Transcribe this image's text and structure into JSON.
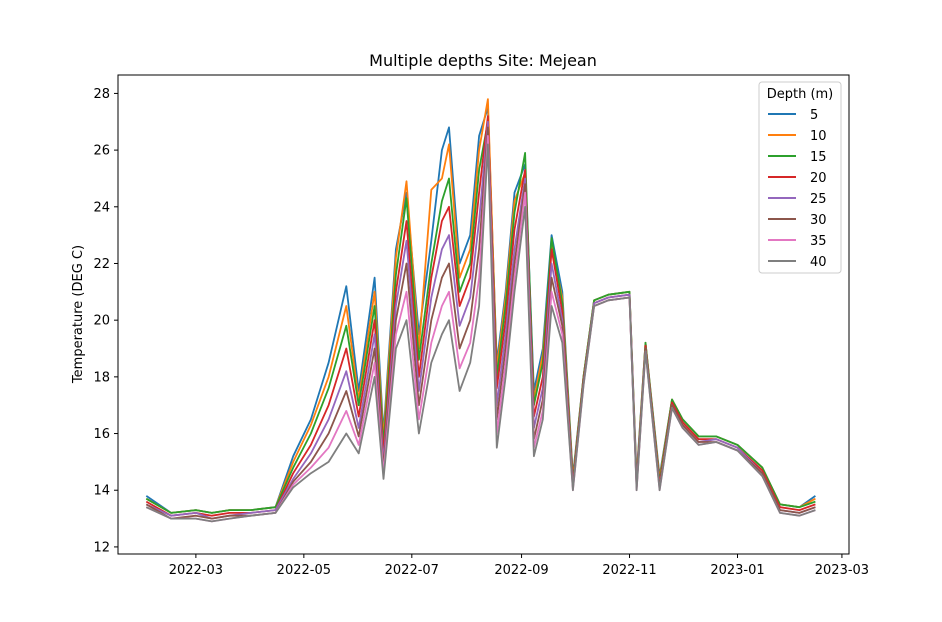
{
  "chart_data": {
    "type": "line",
    "title": "Multiple depths Site: Mejean",
    "xlabel": "",
    "ylabel": "Temperature (DEG C)",
    "x_ticks": [
      "2022-03",
      "2022-05",
      "2022-07",
      "2022-09",
      "2022-11",
      "2023-01",
      "2023-03"
    ],
    "x_tick_dates": [
      "2022-03-01",
      "2022-05-01",
      "2022-07-01",
      "2022-09-01",
      "2022-11-01",
      "2023-01-01",
      "2023-03-01"
    ],
    "y_ticks": [
      "12",
      "14",
      "16",
      "18",
      "20",
      "22",
      "24",
      "26",
      "28"
    ],
    "xlim": [
      "2022-01-16",
      "2023-03-05"
    ],
    "ylim": [
      11.75,
      28.65
    ],
    "grid": false,
    "legend": {
      "title": "Depth (m)",
      "placement": "top-right",
      "entries": [
        "5",
        "10",
        "15",
        "20",
        "25",
        "30",
        "35",
        "40"
      ]
    },
    "series": [
      {
        "name": "5",
        "color": "#1f77b4",
        "x": [
          "2022-02-01",
          "2022-02-15",
          "2022-03-01",
          "2022-03-10",
          "2022-03-20",
          "2022-04-01",
          "2022-04-15",
          "2022-04-25",
          "2022-05-05",
          "2022-05-15",
          "2022-05-25",
          "2022-06-01",
          "2022-06-10",
          "2022-06-15",
          "2022-06-22",
          "2022-06-28",
          "2022-07-05",
          "2022-07-12",
          "2022-07-18",
          "2022-07-22",
          "2022-07-28",
          "2022-08-03",
          "2022-08-08",
          "2022-08-13",
          "2022-08-18",
          "2022-08-23",
          "2022-08-28",
          "2022-09-03",
          "2022-09-08",
          "2022-09-13",
          "2022-09-18",
          "2022-09-24",
          "2022-09-30",
          "2022-10-06",
          "2022-10-12",
          "2022-10-20",
          "2022-11-01",
          "2022-11-05",
          "2022-11-10",
          "2022-11-18",
          "2022-11-25",
          "2022-12-01",
          "2022-12-10",
          "2022-12-20",
          "2023-01-01",
          "2023-01-15",
          "2023-01-25",
          "2023-02-05",
          "2023-02-14"
        ],
        "y": [
          13.8,
          13.2,
          13.3,
          13.2,
          13.3,
          13.3,
          13.4,
          15.2,
          16.5,
          18.5,
          21.2,
          17.5,
          21.5,
          16.0,
          22.5,
          24.5,
          19.5,
          22.8,
          26.0,
          26.8,
          22.0,
          23.0,
          26.5,
          27.5,
          18.5,
          21.0,
          24.5,
          25.5,
          17.5,
          19.0,
          23.0,
          21.0,
          14.5,
          18.0,
          20.7,
          20.9,
          21.0,
          14.5,
          19.2,
          14.5,
          17.2,
          16.5,
          15.9,
          15.9,
          15.6,
          14.8,
          13.5,
          13.4,
          13.8
        ]
      },
      {
        "name": "10",
        "color": "#ff7f0e",
        "x": [
          "2022-02-01",
          "2022-02-15",
          "2022-03-01",
          "2022-03-10",
          "2022-03-20",
          "2022-04-01",
          "2022-04-15",
          "2022-04-25",
          "2022-05-05",
          "2022-05-15",
          "2022-05-25",
          "2022-06-01",
          "2022-06-10",
          "2022-06-15",
          "2022-06-22",
          "2022-06-28",
          "2022-07-05",
          "2022-07-12",
          "2022-07-18",
          "2022-07-22",
          "2022-07-28",
          "2022-08-03",
          "2022-08-08",
          "2022-08-13",
          "2022-08-18",
          "2022-08-23",
          "2022-08-28",
          "2022-09-03",
          "2022-09-08",
          "2022-09-13",
          "2022-09-18",
          "2022-09-24",
          "2022-09-30",
          "2022-10-06",
          "2022-10-12",
          "2022-10-20",
          "2022-11-01",
          "2022-11-05",
          "2022-11-10",
          "2022-11-18",
          "2022-11-25",
          "2022-12-01",
          "2022-12-10",
          "2022-12-20",
          "2023-01-01",
          "2023-01-15",
          "2023-01-25",
          "2023-02-05",
          "2023-02-14"
        ],
        "y": [
          13.7,
          13.2,
          13.3,
          13.2,
          13.3,
          13.3,
          13.4,
          15.0,
          16.3,
          18.0,
          20.5,
          17.2,
          21.0,
          15.8,
          22.2,
          24.9,
          19.0,
          24.6,
          25.0,
          26.2,
          21.5,
          22.5,
          26.0,
          27.8,
          18.3,
          20.8,
          24.2,
          25.2,
          17.2,
          18.8,
          22.6,
          20.8,
          14.4,
          18.0,
          20.7,
          20.9,
          21.0,
          14.4,
          19.2,
          14.4,
          17.2,
          16.5,
          15.9,
          15.9,
          15.6,
          14.8,
          13.5,
          13.4,
          13.7
        ]
      },
      {
        "name": "15",
        "color": "#2ca02c",
        "x": [
          "2022-02-01",
          "2022-02-15",
          "2022-03-01",
          "2022-03-10",
          "2022-03-20",
          "2022-04-01",
          "2022-04-15",
          "2022-04-25",
          "2022-05-05",
          "2022-05-15",
          "2022-05-25",
          "2022-06-01",
          "2022-06-10",
          "2022-06-15",
          "2022-06-22",
          "2022-06-28",
          "2022-07-05",
          "2022-07-12",
          "2022-07-18",
          "2022-07-22",
          "2022-07-28",
          "2022-08-03",
          "2022-08-08",
          "2022-08-13",
          "2022-08-18",
          "2022-08-23",
          "2022-08-28",
          "2022-09-03",
          "2022-09-08",
          "2022-09-13",
          "2022-09-18",
          "2022-09-24",
          "2022-09-30",
          "2022-10-06",
          "2022-10-12",
          "2022-10-20",
          "2022-11-01",
          "2022-11-05",
          "2022-11-10",
          "2022-11-18",
          "2022-11-25",
          "2022-12-01",
          "2022-12-10",
          "2022-12-20",
          "2023-01-01",
          "2023-01-15",
          "2023-01-25",
          "2023-02-05",
          "2023-02-14"
        ],
        "y": [
          13.7,
          13.2,
          13.3,
          13.2,
          13.3,
          13.3,
          13.4,
          14.8,
          16.0,
          17.6,
          19.8,
          17.0,
          20.5,
          15.6,
          21.6,
          24.3,
          18.6,
          22.0,
          24.2,
          25.0,
          21.0,
          22.0,
          25.3,
          27.0,
          18.0,
          20.5,
          23.8,
          25.9,
          17.0,
          18.5,
          22.9,
          20.6,
          14.3,
          18.0,
          20.7,
          20.9,
          21.0,
          14.3,
          19.2,
          14.3,
          17.2,
          16.5,
          15.9,
          15.9,
          15.6,
          14.8,
          13.5,
          13.4,
          13.6
        ]
      },
      {
        "name": "20",
        "color": "#d62728",
        "x": [
          "2022-02-01",
          "2022-02-15",
          "2022-03-01",
          "2022-03-10",
          "2022-03-20",
          "2022-04-01",
          "2022-04-15",
          "2022-04-25",
          "2022-05-05",
          "2022-05-15",
          "2022-05-25",
          "2022-06-01",
          "2022-06-10",
          "2022-06-15",
          "2022-06-22",
          "2022-06-28",
          "2022-07-05",
          "2022-07-12",
          "2022-07-18",
          "2022-07-22",
          "2022-07-28",
          "2022-08-03",
          "2022-08-08",
          "2022-08-13",
          "2022-08-18",
          "2022-08-23",
          "2022-08-28",
          "2022-09-03",
          "2022-09-08",
          "2022-09-13",
          "2022-09-18",
          "2022-09-24",
          "2022-09-30",
          "2022-10-06",
          "2022-10-12",
          "2022-10-20",
          "2022-11-01",
          "2022-11-05",
          "2022-11-10",
          "2022-11-18",
          "2022-11-25",
          "2022-12-01",
          "2022-12-10",
          "2022-12-20",
          "2023-01-01",
          "2023-01-15",
          "2023-01-25",
          "2023-02-05",
          "2023-02-14"
        ],
        "y": [
          13.6,
          13.1,
          13.2,
          13.1,
          13.2,
          13.2,
          13.3,
          14.6,
          15.6,
          17.0,
          19.0,
          16.6,
          20.0,
          15.3,
          21.0,
          23.5,
          18.0,
          21.5,
          23.5,
          24.0,
          20.5,
          21.5,
          24.5,
          27.2,
          17.6,
          20.0,
          23.2,
          25.3,
          16.6,
          18.0,
          22.5,
          20.3,
          14.2,
          17.9,
          20.6,
          20.8,
          20.9,
          14.2,
          19.1,
          14.2,
          17.1,
          16.4,
          15.8,
          15.8,
          15.5,
          14.7,
          13.4,
          13.3,
          13.5
        ]
      },
      {
        "name": "25",
        "color": "#9467bd",
        "x": [
          "2022-02-01",
          "2022-02-15",
          "2022-03-01",
          "2022-03-10",
          "2022-03-20",
          "2022-04-01",
          "2022-04-15",
          "2022-04-25",
          "2022-05-05",
          "2022-05-15",
          "2022-05-25",
          "2022-06-01",
          "2022-06-10",
          "2022-06-15",
          "2022-06-22",
          "2022-06-28",
          "2022-07-05",
          "2022-07-12",
          "2022-07-18",
          "2022-07-22",
          "2022-07-28",
          "2022-08-03",
          "2022-08-08",
          "2022-08-13",
          "2022-08-18",
          "2022-08-23",
          "2022-08-28",
          "2022-09-03",
          "2022-09-08",
          "2022-09-13",
          "2022-09-18",
          "2022-09-24",
          "2022-09-30",
          "2022-10-06",
          "2022-10-12",
          "2022-10-20",
          "2022-11-01",
          "2022-11-05",
          "2022-11-10",
          "2022-11-18",
          "2022-11-25",
          "2022-12-01",
          "2022-12-10",
          "2022-12-20",
          "2023-01-01",
          "2023-01-15",
          "2023-01-25",
          "2023-02-05",
          "2023-02-14"
        ],
        "y": [
          13.5,
          13.1,
          13.2,
          13.0,
          13.1,
          13.2,
          13.3,
          14.4,
          15.3,
          16.5,
          18.2,
          16.2,
          19.5,
          15.0,
          20.5,
          22.8,
          17.5,
          20.8,
          22.5,
          23.0,
          19.8,
          20.8,
          23.5,
          27.0,
          17.0,
          19.5,
          22.5,
          25.0,
          16.2,
          17.6,
          22.0,
          20.0,
          14.1,
          17.8,
          20.6,
          20.8,
          20.9,
          14.1,
          19.0,
          14.1,
          17.0,
          16.3,
          15.7,
          15.8,
          15.5,
          14.6,
          13.3,
          13.2,
          13.4
        ]
      },
      {
        "name": "30",
        "color": "#8c564b",
        "x": [
          "2022-02-01",
          "2022-02-15",
          "2022-03-01",
          "2022-03-10",
          "2022-03-20",
          "2022-04-01",
          "2022-04-15",
          "2022-04-25",
          "2022-05-05",
          "2022-05-15",
          "2022-05-25",
          "2022-06-01",
          "2022-06-10",
          "2022-06-15",
          "2022-06-22",
          "2022-06-28",
          "2022-07-05",
          "2022-07-12",
          "2022-07-18",
          "2022-07-22",
          "2022-07-28",
          "2022-08-03",
          "2022-08-08",
          "2022-08-13",
          "2022-08-18",
          "2022-08-23",
          "2022-08-28",
          "2022-09-03",
          "2022-09-08",
          "2022-09-13",
          "2022-09-18",
          "2022-09-24",
          "2022-09-30",
          "2022-10-06",
          "2022-10-12",
          "2022-10-20",
          "2022-11-01",
          "2022-11-05",
          "2022-11-10",
          "2022-11-18",
          "2022-11-25",
          "2022-12-01",
          "2022-12-10",
          "2022-12-20",
          "2023-01-01",
          "2023-01-15",
          "2023-01-25",
          "2023-02-05",
          "2023-02-14"
        ],
        "y": [
          13.5,
          13.0,
          13.1,
          13.0,
          13.1,
          13.1,
          13.2,
          14.3,
          15.0,
          16.0,
          17.5,
          15.9,
          19.0,
          14.8,
          20.0,
          22.0,
          17.0,
          20.0,
          21.5,
          22.0,
          19.0,
          20.0,
          22.5,
          26.8,
          16.5,
          19.0,
          22.0,
          24.8,
          15.8,
          17.2,
          21.5,
          19.8,
          14.1,
          17.8,
          20.5,
          20.7,
          20.8,
          14.1,
          19.0,
          14.1,
          17.0,
          16.3,
          15.7,
          15.7,
          15.4,
          14.6,
          13.3,
          13.2,
          13.4
        ]
      },
      {
        "name": "35",
        "color": "#e377c2",
        "x": [
          "2022-02-01",
          "2022-02-15",
          "2022-03-01",
          "2022-03-10",
          "2022-03-20",
          "2022-04-01",
          "2022-04-15",
          "2022-04-25",
          "2022-05-05",
          "2022-05-15",
          "2022-05-25",
          "2022-06-01",
          "2022-06-10",
          "2022-06-15",
          "2022-06-22",
          "2022-06-28",
          "2022-07-05",
          "2022-07-12",
          "2022-07-18",
          "2022-07-22",
          "2022-07-28",
          "2022-08-03",
          "2022-08-08",
          "2022-08-13",
          "2022-08-18",
          "2022-08-23",
          "2022-08-28",
          "2022-09-03",
          "2022-09-08",
          "2022-09-13",
          "2022-09-18",
          "2022-09-24",
          "2022-09-30",
          "2022-10-06",
          "2022-10-12",
          "2022-10-20",
          "2022-11-01",
          "2022-11-05",
          "2022-11-10",
          "2022-11-18",
          "2022-11-25",
          "2022-12-01",
          "2022-12-10",
          "2022-12-20",
          "2023-01-01",
          "2023-01-15",
          "2023-01-25",
          "2023-02-05",
          "2023-02-14"
        ],
        "y": [
          13.4,
          13.0,
          13.0,
          12.9,
          13.0,
          13.1,
          13.2,
          14.2,
          14.8,
          15.5,
          16.8,
          15.6,
          18.5,
          14.6,
          19.5,
          21.0,
          16.5,
          19.2,
          20.5,
          21.0,
          18.3,
          19.2,
          21.5,
          26.5,
          16.0,
          18.5,
          21.5,
          24.5,
          15.5,
          16.8,
          21.0,
          19.5,
          14.0,
          17.7,
          20.5,
          20.7,
          20.8,
          14.0,
          18.9,
          14.0,
          16.9,
          16.2,
          15.6,
          15.7,
          15.4,
          14.5,
          13.2,
          13.1,
          13.3
        ]
      },
      {
        "name": "40",
        "color": "#7f7f7f",
        "x": [
          "2022-02-01",
          "2022-02-15",
          "2022-03-01",
          "2022-03-10",
          "2022-03-20",
          "2022-04-01",
          "2022-04-15",
          "2022-04-25",
          "2022-05-05",
          "2022-05-15",
          "2022-05-25",
          "2022-06-01",
          "2022-06-10",
          "2022-06-15",
          "2022-06-22",
          "2022-06-28",
          "2022-07-05",
          "2022-07-12",
          "2022-07-18",
          "2022-07-22",
          "2022-07-28",
          "2022-08-03",
          "2022-08-08",
          "2022-08-13",
          "2022-08-18",
          "2022-08-23",
          "2022-08-28",
          "2022-09-03",
          "2022-09-08",
          "2022-09-13",
          "2022-09-18",
          "2022-09-24",
          "2022-09-30",
          "2022-10-06",
          "2022-10-12",
          "2022-10-20",
          "2022-11-01",
          "2022-11-05",
          "2022-11-10",
          "2022-11-18",
          "2022-11-25",
          "2022-12-01",
          "2022-12-10",
          "2022-12-20",
          "2023-01-01",
          "2023-01-15",
          "2023-01-25",
          "2023-02-05",
          "2023-02-14"
        ],
        "y": [
          13.4,
          13.0,
          13.0,
          12.9,
          13.0,
          13.1,
          13.2,
          14.1,
          14.6,
          15.0,
          16.0,
          15.3,
          18.0,
          14.4,
          19.0,
          20.0,
          16.0,
          18.5,
          19.5,
          20.0,
          17.5,
          18.5,
          20.5,
          26.2,
          15.5,
          18.0,
          21.0,
          24.0,
          15.2,
          16.5,
          20.5,
          19.2,
          14.0,
          17.7,
          20.5,
          20.7,
          20.8,
          14.0,
          18.9,
          14.0,
          16.9,
          16.2,
          15.6,
          15.7,
          15.4,
          14.5,
          13.2,
          13.1,
          13.3
        ]
      }
    ]
  }
}
